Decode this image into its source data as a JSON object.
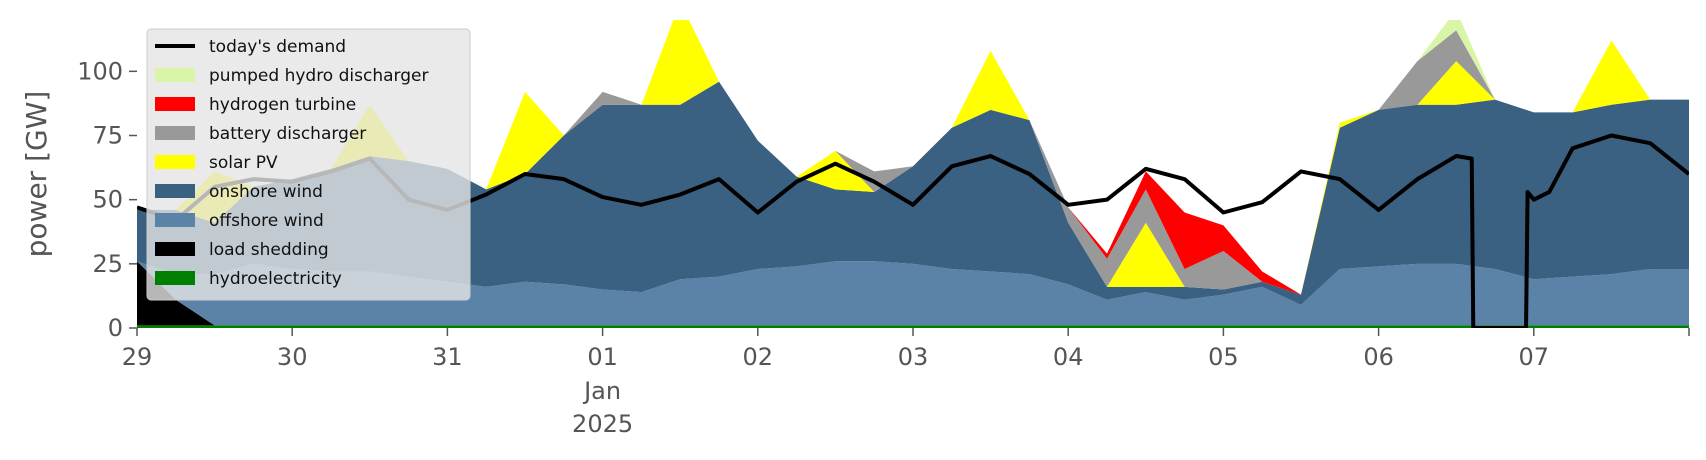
{
  "chart_data": {
    "type": "area",
    "title": "",
    "xlabel": "",
    "ylabel": "power [GW]",
    "ylim": [
      0,
      120
    ],
    "y_ticks": [
      0,
      25,
      50,
      75,
      100
    ],
    "y_tick_labels": [
      "0",
      "25",
      "50",
      "75",
      "100"
    ],
    "xlim": [
      0,
      10
    ],
    "x_ticks": [
      {
        "pos": 0,
        "label": "29"
      },
      {
        "pos": 1,
        "label": "30"
      },
      {
        "pos": 2,
        "label": "31"
      },
      {
        "pos": 3,
        "label": "01",
        "sub1": "Jan",
        "sub2": "2025"
      },
      {
        "pos": 4,
        "label": "02"
      },
      {
        "pos": 5,
        "label": "03"
      },
      {
        "pos": 6,
        "label": "04"
      },
      {
        "pos": 7,
        "label": "05"
      },
      {
        "pos": 8,
        "label": "06"
      },
      {
        "pos": 9,
        "label": "07"
      }
    ],
    "x_days": [
      0,
      0.25,
      0.5,
      0.75,
      1,
      1.25,
      1.5,
      1.75,
      2,
      2.25,
      2.5,
      2.75,
      3,
      3.25,
      3.5,
      3.75,
      4,
      4.25,
      4.5,
      4.75,
      5,
      5.25,
      5.5,
      5.75,
      6,
      6.25,
      6.5,
      6.75,
      7,
      7.25,
      7.5,
      7.75,
      8,
      8.25,
      8.5,
      8.75,
      9,
      9.25,
      9.5,
      9.75,
      10
    ],
    "grid": false,
    "legend": {
      "placement": "top-left"
    },
    "series": [
      {
        "name": "hydroelectricity",
        "color": "#008000",
        "values": [
          1,
          1,
          1,
          1,
          1,
          1,
          1,
          1,
          1,
          1,
          1,
          1,
          1,
          1,
          1,
          1,
          1,
          1,
          1,
          1,
          1,
          1,
          1,
          1,
          1,
          1,
          1,
          1,
          1,
          1,
          1,
          1,
          1,
          1,
          1,
          1,
          1,
          1,
          1,
          1,
          1
        ]
      },
      {
        "name": "load shedding",
        "color": "#000000",
        "values": [
          25,
          10,
          0,
          0,
          0,
          0,
          0,
          0,
          0,
          0,
          0,
          0,
          0,
          0,
          0,
          0,
          0,
          0,
          0,
          0,
          0,
          0,
          0,
          0,
          0,
          0,
          0,
          0,
          0,
          0,
          0,
          0,
          0,
          0,
          0,
          0,
          0,
          0,
          0,
          0,
          0
        ]
      },
      {
        "name": "offshore wind",
        "color": "#5b83a8",
        "values": [
          0,
          10,
          20,
          24,
          22,
          21,
          21,
          19,
          17,
          15,
          17,
          16,
          14,
          13,
          18,
          19,
          22,
          23,
          25,
          25,
          24,
          22,
          21,
          20,
          16,
          10,
          13,
          10,
          12,
          15,
          8,
          22,
          23,
          24,
          24,
          22,
          18,
          19,
          20,
          22,
          22
        ]
      },
      {
        "name": "onshore wind",
        "color": "#3b6182",
        "values": [
          20,
          25,
          20,
          30,
          35,
          40,
          45,
          45,
          44,
          38,
          42,
          58,
          72,
          73,
          68,
          76,
          50,
          35,
          28,
          27,
          38,
          55,
          63,
          60,
          24,
          5,
          2,
          5,
          2,
          2,
          4,
          55,
          61,
          62,
          62,
          66,
          65,
          64,
          66,
          66,
          66
        ]
      },
      {
        "name": "solar PV",
        "color": "#ffff00",
        "values": [
          0,
          0,
          20,
          0,
          0,
          0,
          20,
          0,
          0,
          0,
          32,
          0,
          0,
          0,
          40,
          0,
          0,
          0,
          15,
          0,
          0,
          0,
          23,
          0,
          0,
          0,
          25,
          0,
          0,
          0,
          0,
          2,
          0,
          0,
          17,
          0,
          0,
          0,
          25,
          0,
          0
        ]
      },
      {
        "name": "battery discharger",
        "color": "#999999",
        "values": [
          0,
          0,
          0,
          0,
          0,
          0,
          0,
          0,
          0,
          0,
          0,
          0,
          5,
          0,
          0,
          0,
          0,
          0,
          0,
          8,
          0,
          0,
          0,
          0,
          6,
          11,
          13,
          7,
          15,
          0,
          0,
          0,
          0,
          17,
          12,
          0,
          0,
          0,
          0,
          0,
          0
        ]
      },
      {
        "name": "hydrogen turbine",
        "color": "#ff0000",
        "values": [
          0,
          0,
          0,
          0,
          0,
          0,
          0,
          0,
          0,
          0,
          0,
          0,
          0,
          0,
          0,
          0,
          0,
          0,
          0,
          0,
          0,
          0,
          0,
          0,
          0,
          2,
          7,
          22,
          10,
          4,
          0,
          0,
          0,
          0,
          0,
          0,
          0,
          0,
          0,
          0,
          0
        ]
      },
      {
        "name": "pumped hydro discharger",
        "color": "#d9f5a8",
        "values": [
          0,
          0,
          0,
          0,
          0,
          0,
          0,
          0,
          0,
          0,
          0,
          0,
          0,
          0,
          0,
          0,
          0,
          0,
          0,
          0,
          0,
          0,
          0,
          0,
          0,
          0,
          0,
          0,
          0,
          0,
          0,
          0,
          0,
          0,
          8,
          0,
          0,
          0,
          0,
          0,
          0
        ]
      }
    ],
    "demand": {
      "name": "today's demand",
      "color": "#000000",
      "x": [
        0,
        0.25,
        0.5,
        0.75,
        1,
        1.25,
        1.5,
        1.75,
        2,
        2.25,
        2.5,
        2.75,
        3,
        3.25,
        3.5,
        3.75,
        4,
        4.25,
        4.5,
        4.75,
        5,
        5.25,
        5.5,
        5.75,
        6,
        6.25,
        6.5,
        6.75,
        7,
        7.25,
        7.5,
        7.75,
        8,
        8.25,
        8.5,
        8.6,
        8.61,
        8.95,
        8.96,
        9.0,
        9.1,
        9.25,
        9.5,
        9.75,
        10
      ],
      "values": [
        47,
        42,
        55,
        58,
        57,
        61,
        66,
        50,
        46,
        52,
        60,
        58,
        51,
        48,
        52,
        58,
        45,
        57,
        64,
        57,
        48,
        63,
        67,
        60,
        48,
        50,
        62,
        58,
        45,
        49,
        61,
        58,
        46,
        58,
        67,
        66,
        0,
        0,
        53,
        50,
        53,
        70,
        75,
        72,
        60
      ]
    },
    "legend_entries": [
      "today's demand",
      "pumped hydro discharger",
      "hydrogen turbine",
      "battery discharger",
      "solar PV",
      "onshore wind",
      "offshore wind",
      "load shedding",
      "hydroelectricity"
    ]
  }
}
